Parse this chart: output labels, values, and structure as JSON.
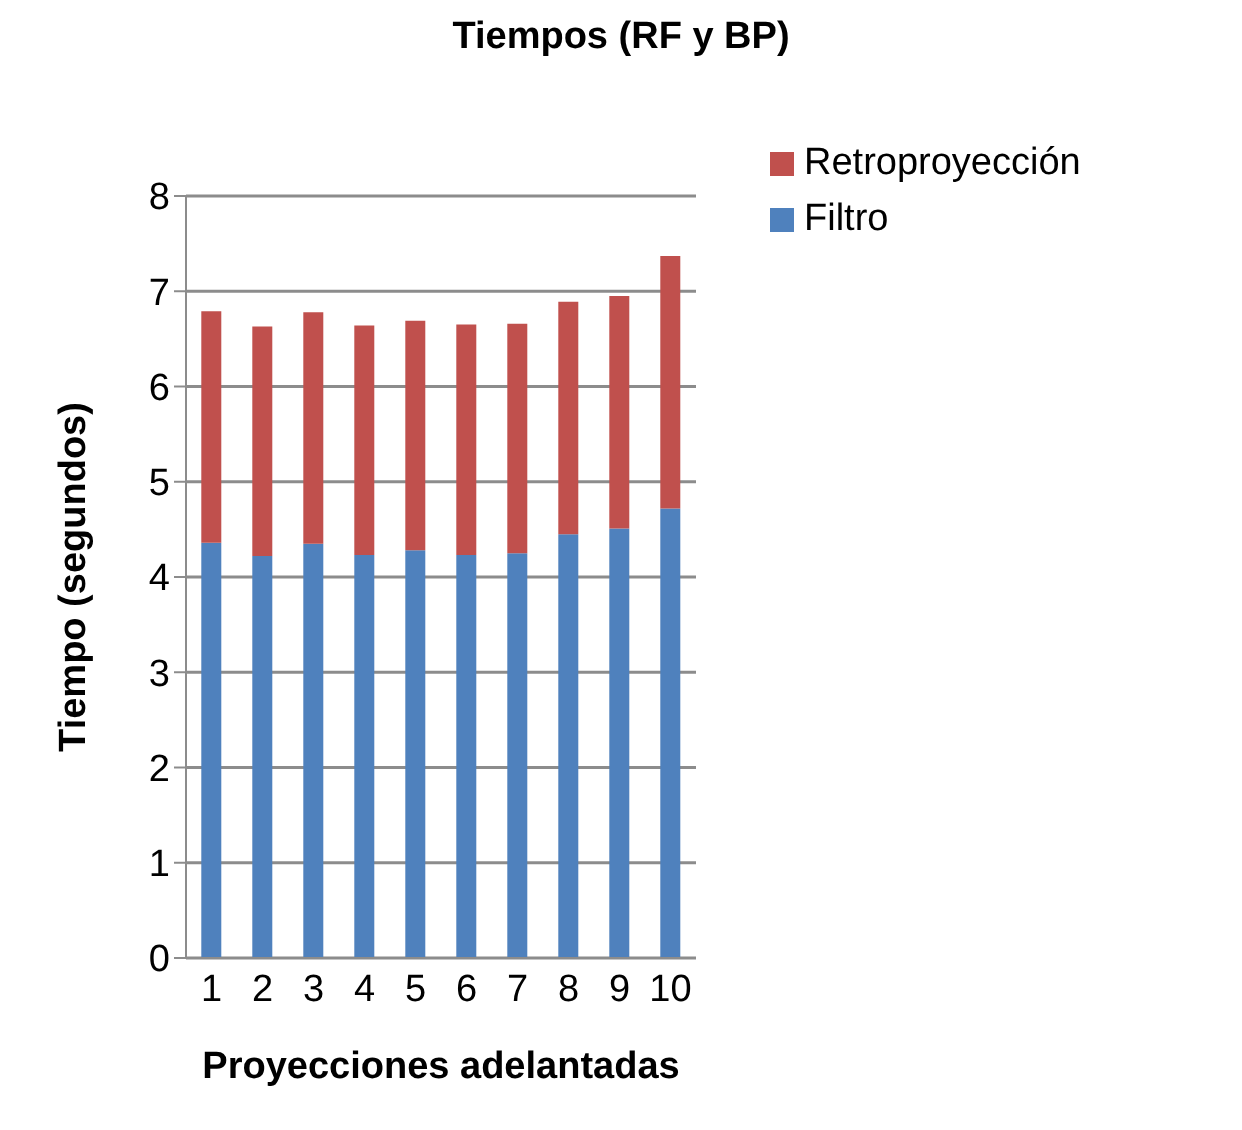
{
  "chart_data": {
    "type": "bar",
    "title": "Tiempos (RF y BP)",
    "xlabel": "Proyecciones adelantadas",
    "ylabel": "Tiempo (segundos)",
    "categories": [
      "1",
      "2",
      "3",
      "4",
      "5",
      "6",
      "7",
      "8",
      "9",
      "10"
    ],
    "series": [
      {
        "name": "Filtro",
        "color": "#4f81bd",
        "values": [
          4.36,
          4.22,
          4.35,
          4.23,
          4.28,
          4.23,
          4.25,
          4.45,
          4.51,
          4.72
        ]
      },
      {
        "name": "Retroproyección",
        "color": "#c0504d",
        "values": [
          2.43,
          2.41,
          2.43,
          2.41,
          2.41,
          2.42,
          2.41,
          2.44,
          2.44,
          2.65
        ]
      }
    ],
    "stacked": true,
    "ylim": [
      0,
      8
    ],
    "yticks": [
      0,
      1,
      2,
      3,
      4,
      5,
      6,
      7,
      8
    ],
    "grid": "y",
    "legend": "top right"
  }
}
